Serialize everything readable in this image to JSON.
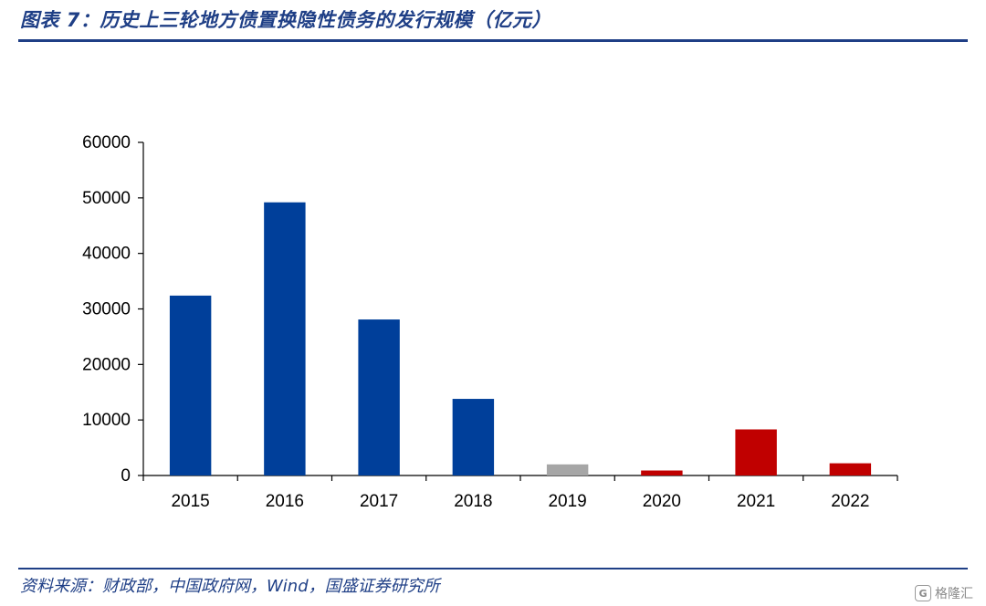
{
  "header": {
    "title": "图表 7：历史上三轮地方债置换隐性债务的发行规模（亿元）"
  },
  "footer": {
    "source": "资料来源：财政部，中国政府网，Wind，国盛证券研究所"
  },
  "watermark": {
    "logo_letter": "G",
    "text": "格隆汇"
  },
  "colors": {
    "round1": "#003f9a",
    "round2": "#a6a6a6",
    "round3": "#c00000",
    "header_blue": "#1f3f86"
  },
  "chart_data": {
    "type": "bar",
    "title": "",
    "xlabel": "",
    "ylabel": "",
    "categories": [
      "2015",
      "2016",
      "2017",
      "2018",
      "2019",
      "2020",
      "2021",
      "2022"
    ],
    "values": [
      32400,
      49200,
      28100,
      13800,
      2000,
      900,
      8300,
      2200
    ],
    "bar_colors": [
      "#003f9a",
      "#003f9a",
      "#003f9a",
      "#003f9a",
      "#a6a6a6",
      "#c00000",
      "#c00000",
      "#c00000"
    ],
    "ylim": [
      0,
      60000
    ],
    "yticks": [
      0,
      10000,
      20000,
      30000,
      40000,
      50000,
      60000
    ],
    "ytick_labels": [
      "0",
      "10000",
      "20000",
      "30000",
      "40000",
      "50000",
      "60000"
    ],
    "grid": false,
    "legend": "none"
  }
}
